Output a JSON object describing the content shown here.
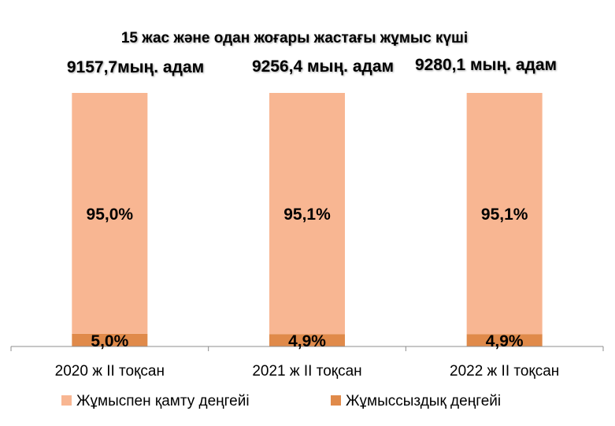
{
  "chart_data": {
    "type": "bar",
    "stacked": true,
    "title": "15 жас және одан жоғары жастағы жұмыс күші",
    "categories": [
      "2020 ж II тоқсан",
      "2021 ж II тоқсан",
      "2022 ж II тоқсан"
    ],
    "totals": [
      "9157,7мың. адам",
      "9256,4 мың. адам",
      "9280,1 мың. адам"
    ],
    "series": [
      {
        "name": "Жұмыссыздық деңгейі",
        "values": [
          5.0,
          4.9,
          4.9
        ],
        "labels": [
          "5,0%",
          "4,9%",
          "4,9%"
        ],
        "color": "#E08A4A"
      },
      {
        "name": "Жұмыспен қамту деңгейі",
        "values": [
          95.0,
          95.1,
          95.1
        ],
        "labels": [
          "95,0%",
          "95,1%",
          "95,1%"
        ],
        "color": "#F8B692"
      }
    ],
    "ylim": [
      0,
      100
    ],
    "grid": false,
    "legend_position": "bottom",
    "legend_order": [
      "Жұмыспен қамту деңгейі",
      "Жұмыссыздық деңгейі"
    ]
  }
}
